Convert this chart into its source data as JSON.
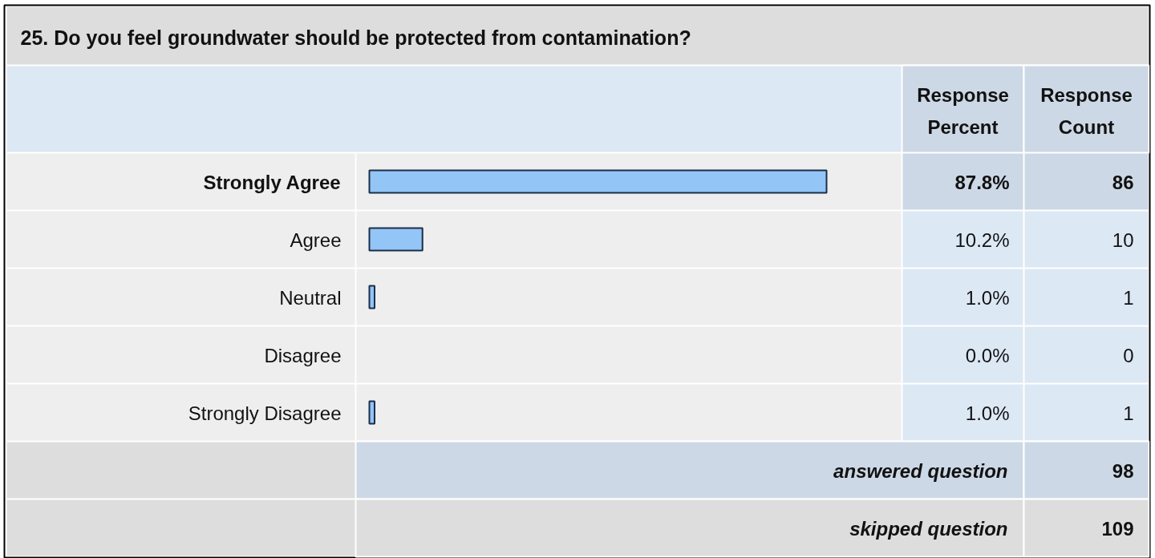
{
  "chart_data": {
    "type": "bar",
    "orientation": "horizontal",
    "title": "25. Do you feel groundwater should be protected from contamination?",
    "categories": [
      "Strongly Agree",
      "Agree",
      "Neutral",
      "Disagree",
      "Strongly Disagree"
    ],
    "values": [
      87.8,
      10.2,
      1.0,
      0.0,
      1.0
    ],
    "value_labels": [
      "87.8%",
      "10.2%",
      "1.0%",
      "0.0%",
      "1.0%"
    ],
    "color": "#93c5f7",
    "tick_labels": "y",
    "annotations": [
      "Response Percent",
      "Response Count",
      "86",
      "10",
      "1",
      "0",
      "1",
      "answered question",
      "98",
      "skipped question",
      "109"
    ]
  }
}
